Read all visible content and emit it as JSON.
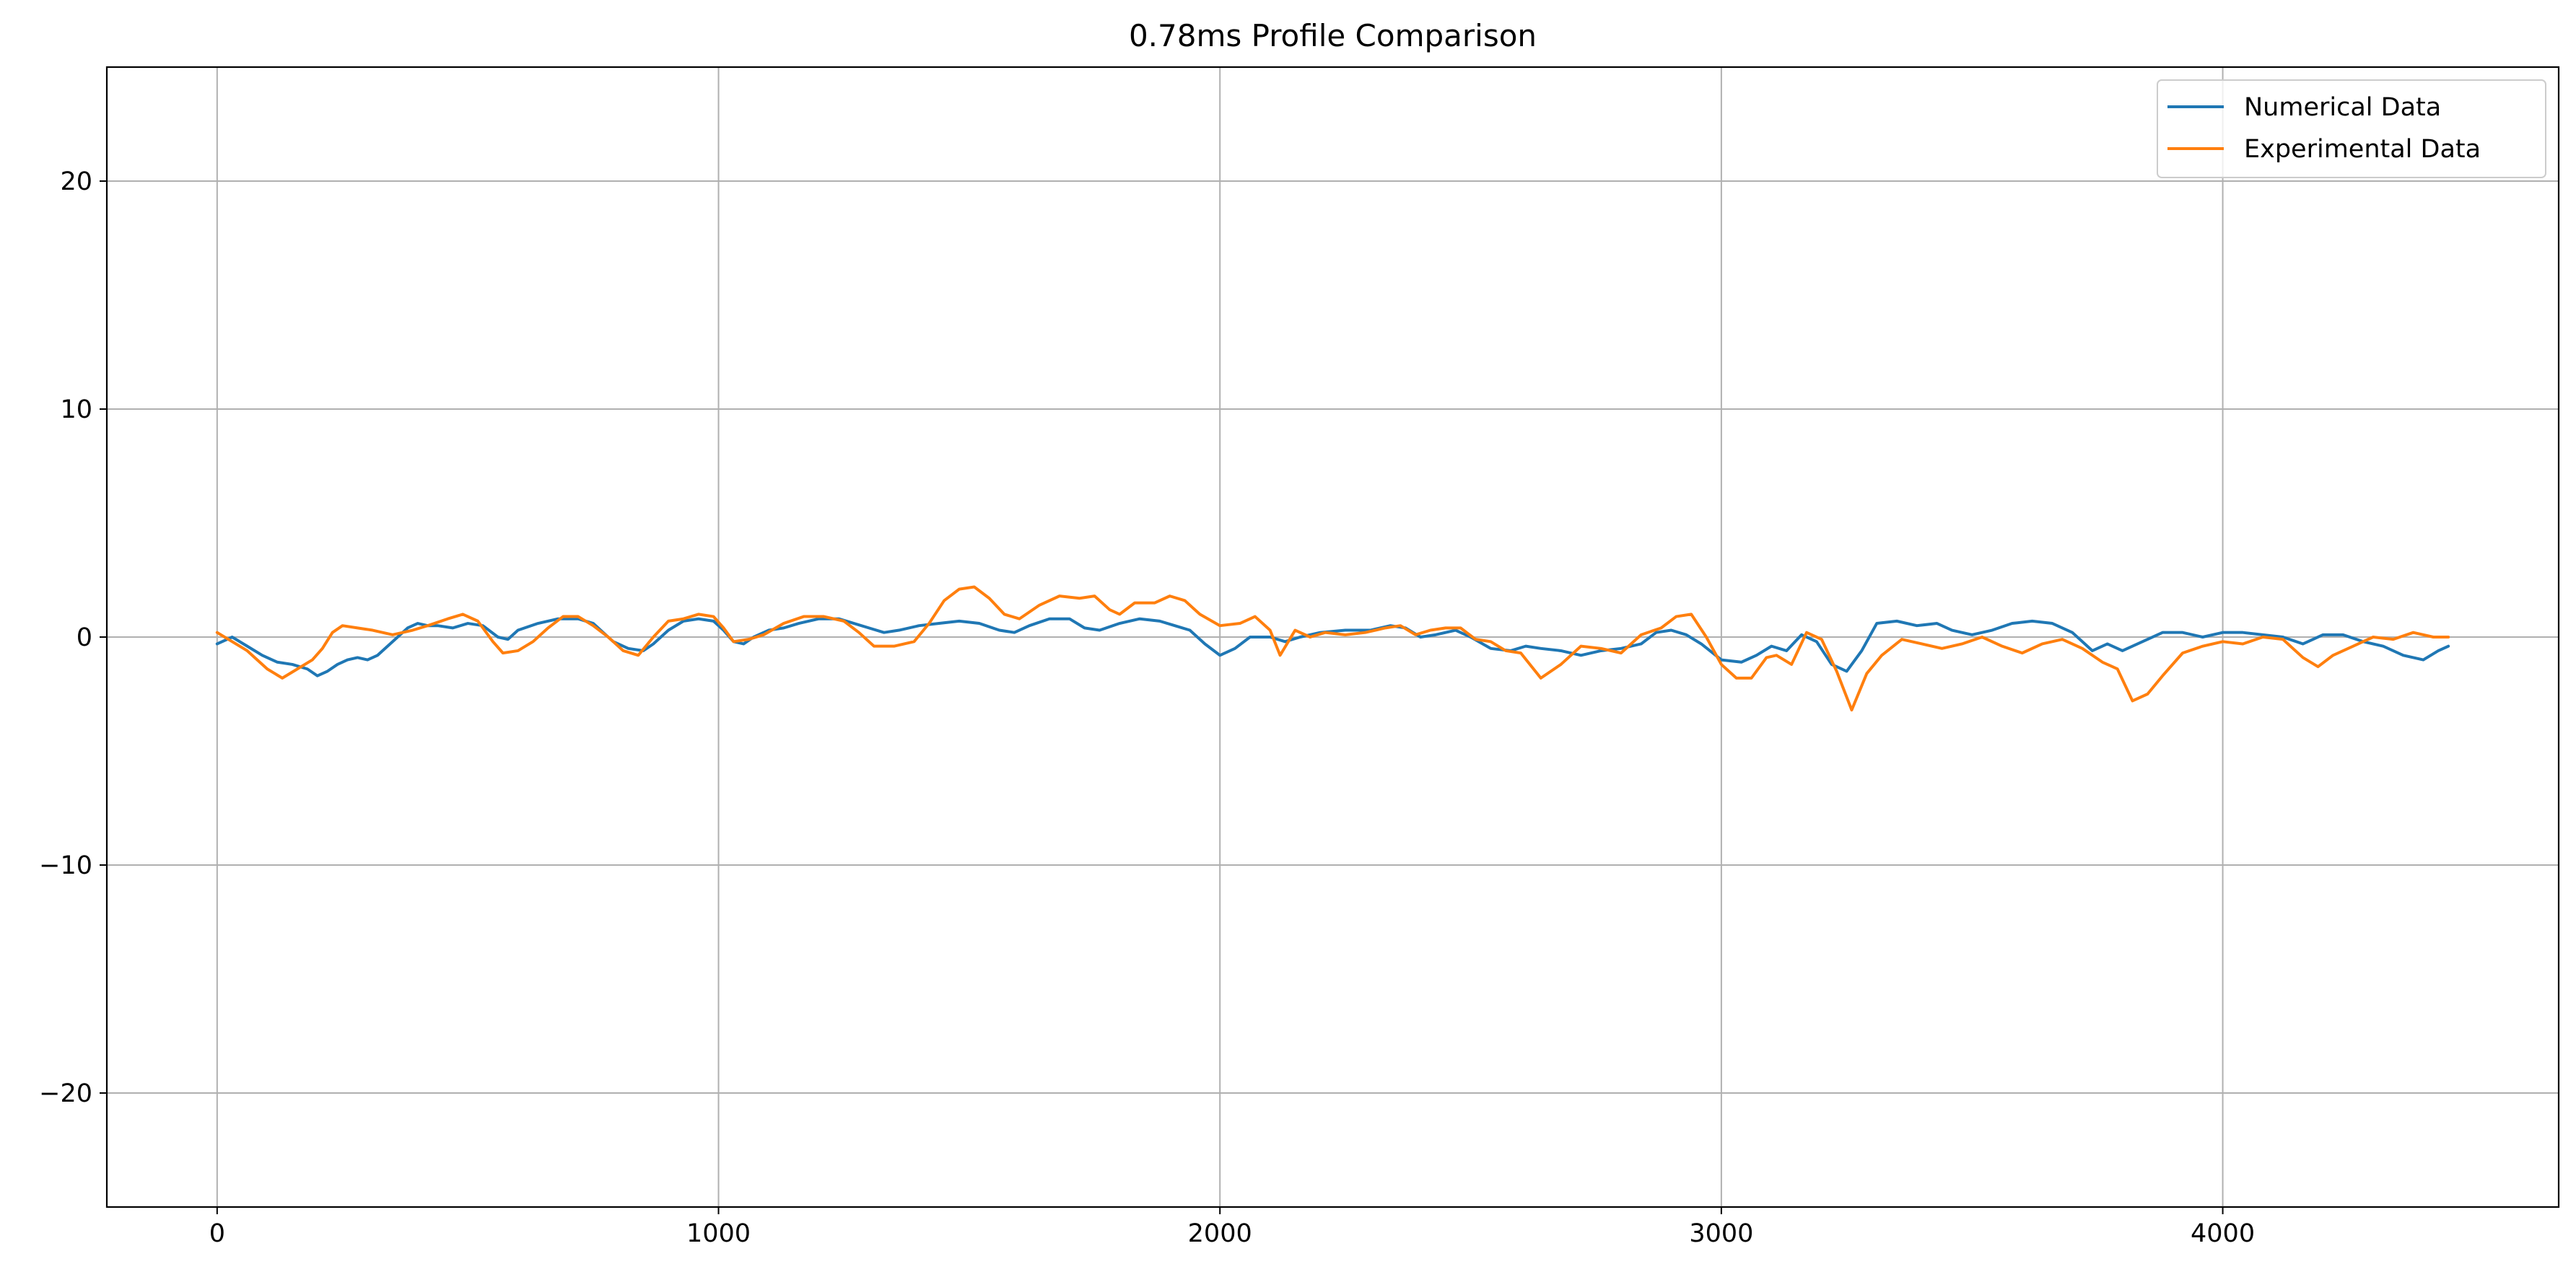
{
  "chart_data": {
    "type": "line",
    "title": "0.78ms Profile Comparison",
    "xlabel": "",
    "ylabel": "",
    "xlim": [
      -220,
      4670
    ],
    "ylim": [
      -25,
      25
    ],
    "xticks": [
      0,
      1000,
      2000,
      3000,
      4000
    ],
    "yticks": [
      -20,
      -10,
      0,
      10,
      20
    ],
    "xtick_labels": [
      "0",
      "1000",
      "2000",
      "3000",
      "4000"
    ],
    "ytick_labels": [
      "−20",
      "−10",
      "0",
      "10",
      "20"
    ],
    "grid": true,
    "legend_position": "top-right",
    "series": [
      {
        "name": "Numerical Data",
        "color": "#1f77b4",
        "points": [
          [
            0,
            -0.3
          ],
          [
            30,
            0.0
          ],
          [
            60,
            -0.4
          ],
          [
            90,
            -0.8
          ],
          [
            120,
            -1.1
          ],
          [
            150,
            -1.2
          ],
          [
            180,
            -1.4
          ],
          [
            200,
            -1.7
          ],
          [
            220,
            -1.5
          ],
          [
            240,
            -1.2
          ],
          [
            260,
            -1.0
          ],
          [
            280,
            -0.9
          ],
          [
            300,
            -1.0
          ],
          [
            320,
            -0.8
          ],
          [
            340,
            -0.4
          ],
          [
            360,
            0.0
          ],
          [
            380,
            0.4
          ],
          [
            400,
            0.6
          ],
          [
            420,
            0.5
          ],
          [
            440,
            0.5
          ],
          [
            470,
            0.4
          ],
          [
            500,
            0.6
          ],
          [
            530,
            0.5
          ],
          [
            560,
            0.0
          ],
          [
            580,
            -0.1
          ],
          [
            600,
            0.3
          ],
          [
            640,
            0.6
          ],
          [
            680,
            0.8
          ],
          [
            720,
            0.8
          ],
          [
            750,
            0.6
          ],
          [
            770,
            0.2
          ],
          [
            790,
            -0.2
          ],
          [
            820,
            -0.5
          ],
          [
            850,
            -0.6
          ],
          [
            870,
            -0.3
          ],
          [
            900,
            0.3
          ],
          [
            930,
            0.7
          ],
          [
            960,
            0.8
          ],
          [
            990,
            0.7
          ],
          [
            1010,
            0.3
          ],
          [
            1030,
            -0.2
          ],
          [
            1050,
            -0.3
          ],
          [
            1070,
            0.0
          ],
          [
            1100,
            0.3
          ],
          [
            1130,
            0.4
          ],
          [
            1160,
            0.6
          ],
          [
            1200,
            0.8
          ],
          [
            1240,
            0.8
          ],
          [
            1270,
            0.6
          ],
          [
            1300,
            0.4
          ],
          [
            1330,
            0.2
          ],
          [
            1360,
            0.3
          ],
          [
            1400,
            0.5
          ],
          [
            1440,
            0.6
          ],
          [
            1480,
            0.7
          ],
          [
            1520,
            0.6
          ],
          [
            1560,
            0.3
          ],
          [
            1590,
            0.2
          ],
          [
            1620,
            0.5
          ],
          [
            1660,
            0.8
          ],
          [
            1700,
            0.8
          ],
          [
            1730,
            0.4
          ],
          [
            1760,
            0.3
          ],
          [
            1800,
            0.6
          ],
          [
            1840,
            0.8
          ],
          [
            1880,
            0.7
          ],
          [
            1910,
            0.5
          ],
          [
            1940,
            0.3
          ],
          [
            1970,
            -0.3
          ],
          [
            2000,
            -0.8
          ],
          [
            2030,
            -0.5
          ],
          [
            2060,
            0.0
          ],
          [
            2100,
            0.0
          ],
          [
            2130,
            -0.2
          ],
          [
            2160,
            0.0
          ],
          [
            2200,
            0.2
          ],
          [
            2250,
            0.3
          ],
          [
            2300,
            0.3
          ],
          [
            2340,
            0.5
          ],
          [
            2370,
            0.4
          ],
          [
            2400,
            0.0
          ],
          [
            2430,
            0.1
          ],
          [
            2470,
            0.3
          ],
          [
            2500,
            0.0
          ],
          [
            2540,
            -0.5
          ],
          [
            2580,
            -0.6
          ],
          [
            2610,
            -0.4
          ],
          [
            2640,
            -0.5
          ],
          [
            2680,
            -0.6
          ],
          [
            2720,
            -0.8
          ],
          [
            2760,
            -0.6
          ],
          [
            2800,
            -0.5
          ],
          [
            2840,
            -0.3
          ],
          [
            2870,
            0.2
          ],
          [
            2900,
            0.3
          ],
          [
            2930,
            0.1
          ],
          [
            2960,
            -0.3
          ],
          [
            3000,
            -1.0
          ],
          [
            3040,
            -1.1
          ],
          [
            3070,
            -0.8
          ],
          [
            3100,
            -0.4
          ],
          [
            3130,
            -0.6
          ],
          [
            3160,
            0.1
          ],
          [
            3190,
            -0.2
          ],
          [
            3220,
            -1.2
          ],
          [
            3250,
            -1.5
          ],
          [
            3280,
            -0.6
          ],
          [
            3310,
            0.6
          ],
          [
            3350,
            0.7
          ],
          [
            3390,
            0.5
          ],
          [
            3430,
            0.6
          ],
          [
            3460,
            0.3
          ],
          [
            3500,
            0.1
          ],
          [
            3540,
            0.3
          ],
          [
            3580,
            0.6
          ],
          [
            3620,
            0.7
          ],
          [
            3660,
            0.6
          ],
          [
            3700,
            0.2
          ],
          [
            3740,
            -0.6
          ],
          [
            3770,
            -0.3
          ],
          [
            3800,
            -0.6
          ],
          [
            3840,
            -0.2
          ],
          [
            3880,
            0.2
          ],
          [
            3920,
            0.2
          ],
          [
            3960,
            0.0
          ],
          [
            4000,
            0.2
          ],
          [
            4040,
            0.2
          ],
          [
            4080,
            0.1
          ],
          [
            4120,
            0.0
          ],
          [
            4160,
            -0.3
          ],
          [
            4200,
            0.1
          ],
          [
            4240,
            0.1
          ],
          [
            4280,
            -0.2
          ],
          [
            4320,
            -0.4
          ],
          [
            4360,
            -0.8
          ],
          [
            4400,
            -1.0
          ],
          [
            4430,
            -0.6
          ],
          [
            4450,
            -0.4
          ]
        ]
      },
      {
        "name": "Experimental Data",
        "color": "#ff7f0e",
        "points": [
          [
            0,
            0.2
          ],
          [
            30,
            -0.2
          ],
          [
            60,
            -0.6
          ],
          [
            80,
            -1.0
          ],
          [
            100,
            -1.4
          ],
          [
            130,
            -1.8
          ],
          [
            160,
            -1.4
          ],
          [
            190,
            -1.0
          ],
          [
            210,
            -0.5
          ],
          [
            230,
            0.2
          ],
          [
            250,
            0.5
          ],
          [
            280,
            0.4
          ],
          [
            310,
            0.3
          ],
          [
            350,
            0.1
          ],
          [
            390,
            0.3
          ],
          [
            420,
            0.5
          ],
          [
            460,
            0.8
          ],
          [
            490,
            1.0
          ],
          [
            520,
            0.7
          ],
          [
            550,
            -0.2
          ],
          [
            570,
            -0.7
          ],
          [
            600,
            -0.6
          ],
          [
            630,
            -0.2
          ],
          [
            660,
            0.4
          ],
          [
            690,
            0.9
          ],
          [
            720,
            0.9
          ],
          [
            750,
            0.5
          ],
          [
            780,
            0.0
          ],
          [
            810,
            -0.6
          ],
          [
            840,
            -0.8
          ],
          [
            870,
            0.0
          ],
          [
            900,
            0.7
          ],
          [
            930,
            0.8
          ],
          [
            960,
            1.0
          ],
          [
            990,
            0.9
          ],
          [
            1010,
            0.4
          ],
          [
            1030,
            -0.2
          ],
          [
            1060,
            -0.1
          ],
          [
            1090,
            0.1
          ],
          [
            1130,
            0.6
          ],
          [
            1170,
            0.9
          ],
          [
            1210,
            0.9
          ],
          [
            1250,
            0.7
          ],
          [
            1280,
            0.2
          ],
          [
            1310,
            -0.4
          ],
          [
            1350,
            -0.4
          ],
          [
            1390,
            -0.2
          ],
          [
            1420,
            0.6
          ],
          [
            1450,
            1.6
          ],
          [
            1480,
            2.1
          ],
          [
            1510,
            2.2
          ],
          [
            1540,
            1.7
          ],
          [
            1570,
            1.0
          ],
          [
            1600,
            0.8
          ],
          [
            1640,
            1.4
          ],
          [
            1680,
            1.8
          ],
          [
            1720,
            1.7
          ],
          [
            1750,
            1.8
          ],
          [
            1780,
            1.2
          ],
          [
            1800,
            1.0
          ],
          [
            1830,
            1.5
          ],
          [
            1870,
            1.5
          ],
          [
            1900,
            1.8
          ],
          [
            1930,
            1.6
          ],
          [
            1960,
            1.0
          ],
          [
            2000,
            0.5
          ],
          [
            2040,
            0.6
          ],
          [
            2070,
            0.9
          ],
          [
            2100,
            0.3
          ],
          [
            2120,
            -0.8
          ],
          [
            2150,
            0.3
          ],
          [
            2180,
            0.0
          ],
          [
            2210,
            0.2
          ],
          [
            2250,
            0.1
          ],
          [
            2290,
            0.2
          ],
          [
            2330,
            0.4
          ],
          [
            2360,
            0.5
          ],
          [
            2390,
            0.1
          ],
          [
            2420,
            0.3
          ],
          [
            2450,
            0.4
          ],
          [
            2480,
            0.4
          ],
          [
            2510,
            -0.1
          ],
          [
            2540,
            -0.2
          ],
          [
            2570,
            -0.6
          ],
          [
            2600,
            -0.7
          ],
          [
            2640,
            -1.8
          ],
          [
            2680,
            -1.2
          ],
          [
            2720,
            -0.4
          ],
          [
            2760,
            -0.5
          ],
          [
            2800,
            -0.7
          ],
          [
            2840,
            0.1
          ],
          [
            2880,
            0.4
          ],
          [
            2910,
            0.9
          ],
          [
            2940,
            1.0
          ],
          [
            2970,
            0.0
          ],
          [
            3000,
            -1.2
          ],
          [
            3030,
            -1.8
          ],
          [
            3060,
            -1.8
          ],
          [
            3090,
            -0.9
          ],
          [
            3110,
            -0.8
          ],
          [
            3140,
            -1.2
          ],
          [
            3170,
            0.2
          ],
          [
            3200,
            -0.1
          ],
          [
            3230,
            -1.5
          ],
          [
            3260,
            -3.2
          ],
          [
            3290,
            -1.6
          ],
          [
            3320,
            -0.8
          ],
          [
            3360,
            -0.1
          ],
          [
            3400,
            -0.3
          ],
          [
            3440,
            -0.5
          ],
          [
            3480,
            -0.3
          ],
          [
            3520,
            0.0
          ],
          [
            3560,
            -0.4
          ],
          [
            3600,
            -0.7
          ],
          [
            3640,
            -0.3
          ],
          [
            3680,
            -0.1
          ],
          [
            3720,
            -0.5
          ],
          [
            3760,
            -1.1
          ],
          [
            3790,
            -1.4
          ],
          [
            3820,
            -2.8
          ],
          [
            3850,
            -2.5
          ],
          [
            3880,
            -1.7
          ],
          [
            3920,
            -0.7
          ],
          [
            3960,
            -0.4
          ],
          [
            4000,
            -0.2
          ],
          [
            4040,
            -0.3
          ],
          [
            4080,
            0.0
          ],
          [
            4120,
            -0.1
          ],
          [
            4160,
            -0.9
          ],
          [
            4190,
            -1.3
          ],
          [
            4220,
            -0.8
          ],
          [
            4260,
            -0.4
          ],
          [
            4300,
            0.0
          ],
          [
            4340,
            -0.1
          ],
          [
            4380,
            0.2
          ],
          [
            4420,
            0.0
          ],
          [
            4450,
            0.0
          ]
        ]
      }
    ]
  }
}
